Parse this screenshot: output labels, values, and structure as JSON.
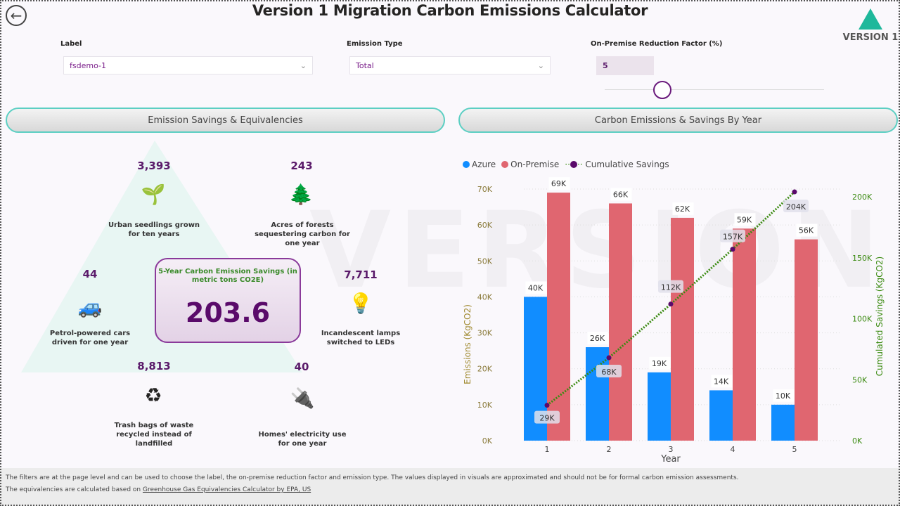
{
  "header": {
    "title": "Version 1 Migration Carbon Emissions Calculator",
    "back_icon": "back-arrow-icon",
    "logo_text": "VERSION 1"
  },
  "filters": {
    "label": {
      "caption": "Label",
      "value": "fsdemo-1"
    },
    "emission_type": {
      "caption": "Emission Type",
      "value": "Total"
    },
    "reduction": {
      "caption": "On-Premise Reduction Factor (%)",
      "value": "5",
      "slider_value": 5
    }
  },
  "sections": {
    "left": "Emission Savings & Equivalencies",
    "right": "Carbon Emissions & Savings By Year"
  },
  "savings": {
    "heading": "5-Year Carbon Emission Savings (in metric tons CO2E)",
    "value": "203.6"
  },
  "equivalencies": [
    {
      "value": "3,393",
      "label": "Urban seedlings grown for ten years",
      "icon": "seedling-icon"
    },
    {
      "value": "243",
      "label": "Acres of forests sequestering carbon for one year",
      "icon": "forest-icon"
    },
    {
      "value": "44",
      "label": "Petrol-powered cars driven for one year",
      "icon": "car-icon"
    },
    {
      "value": "7,711",
      "label": "Incandescent lamps switched to LEDs",
      "icon": "lightbulb-icon"
    },
    {
      "value": "8,813",
      "label": "Trash bags of waste recycled instead of landfilled",
      "icon": "recycle-bin-icon"
    },
    {
      "value": "40",
      "label": "Homes' electricity use for one year",
      "icon": "plug-icon"
    }
  ],
  "chart_data": {
    "type": "bar",
    "categories": [
      "1",
      "2",
      "3",
      "4",
      "5"
    ],
    "xlabel": "Year",
    "ylabel": "Emissions (KgCO2)",
    "y2label": "Cumulated Savings (KgCO2)",
    "ylim": [
      0,
      70000
    ],
    "y2lim": [
      0,
      200000
    ],
    "yticks": [
      "0K",
      "10K",
      "20K",
      "30K",
      "40K",
      "50K",
      "60K",
      "70K"
    ],
    "y2ticks": [
      "0K",
      "50K",
      "100K",
      "150K",
      "200K"
    ],
    "legend": [
      "Azure",
      "On-Premise",
      "Cumulative Savings"
    ],
    "series": [
      {
        "name": "Azure",
        "type": "bar",
        "color": "#118dff",
        "values": [
          40000,
          26000,
          19000,
          14000,
          10000
        ],
        "labels": [
          "40K",
          "26K",
          "19K",
          "14K",
          "10K"
        ]
      },
      {
        "name": "On-Premise",
        "type": "bar",
        "color": "#e06670",
        "values": [
          69000,
          66000,
          62000,
          59000,
          56000
        ],
        "labels": [
          "69K",
          "66K",
          "62K",
          "59K",
          "56K"
        ]
      },
      {
        "name": "Cumulative Savings",
        "type": "line",
        "axis": "right",
        "color": "#3a8a10",
        "values": [
          29000,
          68000,
          112000,
          157000,
          204000
        ],
        "labels": [
          "29K",
          "68K",
          "112K",
          "157K",
          "204K"
        ]
      }
    ]
  },
  "footer": {
    "line1": "The filters are at the page level and can be used to choose the label, the on-premise reduction factor and emission type. The values displayed in visuals are approximated and should not be for formal carbon emission assessments.",
    "line2_prefix": "The equivalencies are calculated based on ",
    "link": "Greenhouse Gas Equivalencies Calculator by EPA, US"
  }
}
